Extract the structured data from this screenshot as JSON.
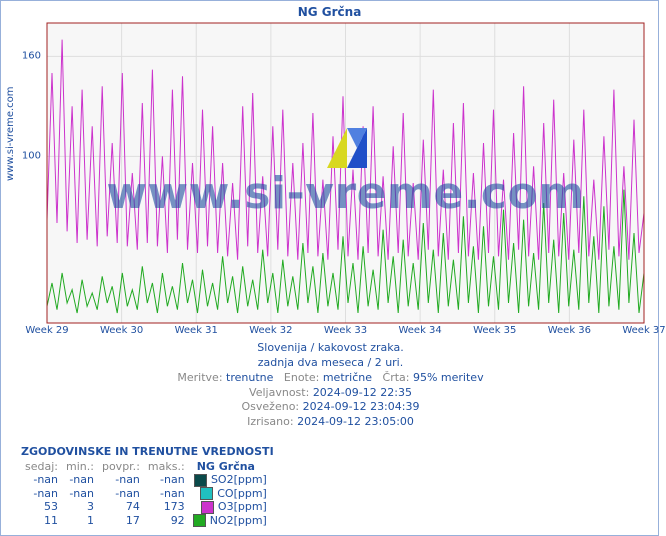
{
  "chart": {
    "title": "NG Grčna",
    "yaxis_label": "www.si-vreme.com",
    "watermark_text": "www.si-vreme.com",
    "type": "line",
    "background_color": "#ffffff",
    "plot_bg_color": "#f7f7f7",
    "grid_color": "#dedede",
    "border_color": "#a02020",
    "text_color": "#2050a0",
    "xlim": [
      0,
      597
    ],
    "ylim": [
      0,
      180
    ],
    "ytick_values": [
      100,
      160
    ],
    "yticks": [
      "100",
      "160"
    ],
    "xticks": [
      "Week 29",
      "Week 30",
      "Week 31",
      "Week 32",
      "Week 33",
      "Week 34",
      "Week 35",
      "Week 36",
      "Week 37"
    ],
    "line_width": 1,
    "series": [
      {
        "name": "O3[ppm]",
        "color": "#cc33cc",
        "values": [
          62,
          150,
          60,
          170,
          55,
          130,
          48,
          140,
          50,
          118,
          46,
          142,
          52,
          108,
          48,
          150,
          46,
          90,
          44,
          132,
          48,
          152,
          46,
          100,
          42,
          140,
          50,
          148,
          44,
          96,
          42,
          128,
          46,
          118,
          42,
          96,
          40,
          84,
          38,
          130,
          46,
          138,
          42,
          88,
          40,
          118,
          44,
          128,
          40,
          96,
          38,
          108,
          42,
          126,
          40,
          86,
          38,
          112,
          44,
          136,
          40,
          92,
          38,
          118,
          42,
          130,
          40,
          88,
          38,
          106,
          42,
          126,
          40,
          84,
          38,
          110,
          44,
          140,
          40,
          92,
          38,
          120,
          42,
          132,
          40,
          90,
          38,
          108,
          42,
          128,
          40,
          86,
          38,
          114,
          44,
          142,
          40,
          94,
          38,
          120,
          42,
          134,
          40,
          90,
          38,
          110,
          42,
          128,
          40,
          86,
          38,
          112,
          44,
          140,
          40,
          94,
          38,
          122,
          42,
          66
        ]
      },
      {
        "name": "NO2[ppm]",
        "color": "#22aa22",
        "values": [
          10,
          24,
          8,
          30,
          12,
          20,
          6,
          26,
          10,
          18,
          8,
          28,
          12,
          22,
          6,
          30,
          10,
          20,
          8,
          34,
          12,
          24,
          6,
          30,
          10,
          22,
          8,
          36,
          12,
          26,
          6,
          32,
          10,
          24,
          8,
          40,
          12,
          28,
          6,
          34,
          10,
          26,
          8,
          44,
          12,
          30,
          6,
          38,
          10,
          28,
          8,
          48,
          12,
          34,
          6,
          42,
          10,
          30,
          8,
          52,
          12,
          36,
          6,
          46,
          10,
          32,
          8,
          56,
          12,
          40,
          6,
          50,
          10,
          36,
          8,
          60,
          12,
          44,
          6,
          54,
          10,
          38,
          8,
          64,
          12,
          46,
          6,
          58,
          10,
          40,
          8,
          68,
          12,
          48,
          6,
          62,
          10,
          42,
          8,
          72,
          12,
          50,
          6,
          66,
          10,
          44,
          8,
          76,
          12,
          52,
          6,
          70,
          10,
          46,
          8,
          80,
          12,
          54,
          6,
          30
        ]
      }
    ]
  },
  "meta": {
    "line1_a": "Slovenija / kakovost zraka.",
    "line2_a": "zadnja dva meseca / 2 uri.",
    "meritve_label": "Meritve:",
    "meritve_val": "trenutne",
    "enote_label": "Enote:",
    "enote_val": "metrične",
    "crta_label": "Črta:",
    "crta_val": "95% meritev",
    "velj_label": "Veljavnost:",
    "velj_val": "2024-09-12 22:35",
    "osv_label": "Osveženo:",
    "osv_val": "2024-09-12 23:04:39",
    "izr_label": "Izrisano:",
    "izr_val": "2024-09-12 23:05:00"
  },
  "history": {
    "title": "ZGODOVINSKE IN TRENUTNE VREDNOSTI",
    "station": "NG Grčna",
    "columns": [
      "sedaj",
      "min.",
      "povpr.",
      "maks."
    ],
    "rows": [
      {
        "sedaj": "-nan",
        "min": "-nan",
        "povpr": "-nan",
        "maks": "-nan",
        "swatch": "#0a4a4a",
        "label": "SO2[ppm]"
      },
      {
        "sedaj": "-nan",
        "min": "-nan",
        "povpr": "-nan",
        "maks": "-nan",
        "swatch": "#20c0c0",
        "label": "CO[ppm]"
      },
      {
        "sedaj": "53",
        "min": "3",
        "povpr": "74",
        "maks": "173",
        "swatch": "#cc33cc",
        "label": "O3[ppm]"
      },
      {
        "sedaj": "11",
        "min": "1",
        "povpr": "17",
        "maks": "92",
        "swatch": "#22aa22",
        "label": "NO2[ppm]"
      }
    ]
  }
}
